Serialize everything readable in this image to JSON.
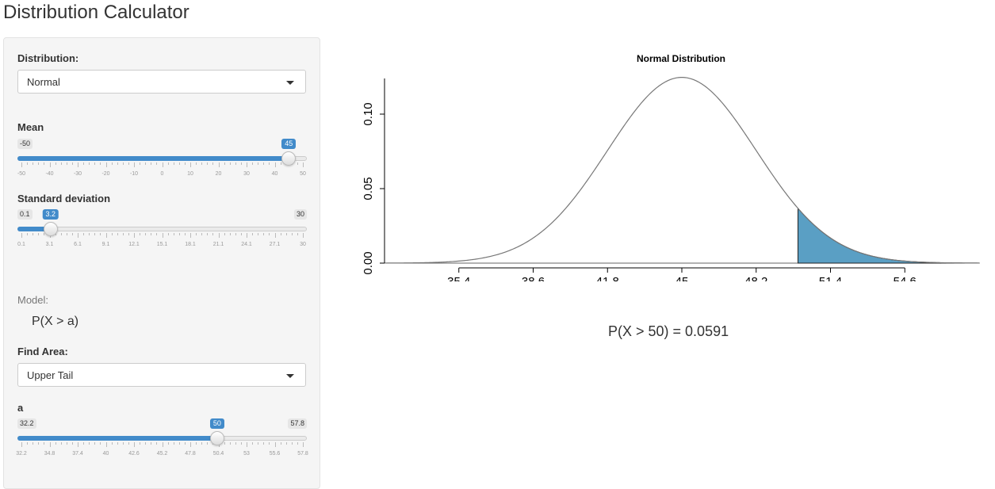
{
  "app": {
    "title": "Distribution Calculator"
  },
  "sidebar": {
    "distribution": {
      "label": "Distribution:",
      "value": "Normal"
    },
    "mean": {
      "label": "Mean",
      "min": -50,
      "max": 50,
      "value": 45,
      "min_label": "-50",
      "max_label": "50",
      "value_label": "45",
      "ticks": [
        "-50",
        "-40",
        "-30",
        "-20",
        "-10",
        "0",
        "10",
        "20",
        "30",
        "40",
        "50"
      ]
    },
    "sd": {
      "label": "Standard deviation",
      "min": 0.1,
      "max": 30,
      "value": 3.2,
      "min_label": "0.1",
      "max_label": "30",
      "value_label": "3.2",
      "ticks": [
        "0.1",
        "3.1",
        "6.1",
        "9.1",
        "12.1",
        "15.1",
        "18.1",
        "21.1",
        "24.1",
        "27.1",
        "30"
      ]
    },
    "model": {
      "label": "Model:",
      "formula": "P(X > a)"
    },
    "find_area": {
      "label": "Find Area:",
      "value": "Upper Tail"
    },
    "a": {
      "label": "a",
      "min": 32.2,
      "max": 57.8,
      "value": 50,
      "min_label": "32.2",
      "max_label": "57.8",
      "value_label": "50",
      "ticks": [
        "32.2",
        "34.8",
        "37.4",
        "40",
        "42.6",
        "45.2",
        "47.8",
        "50.4",
        "53",
        "55.6",
        "57.8"
      ]
    }
  },
  "chart_data": {
    "type": "area",
    "title": "Normal Distribution",
    "distribution": "normal",
    "mean": 45,
    "sd": 3.2,
    "shaded_region": {
      "from": 50,
      "to": "upper tail"
    },
    "shade_color": "#5a9fc4",
    "x_ticks": [
      35.4,
      38.6,
      41.8,
      45,
      48.2,
      51.4,
      54.6
    ],
    "x_tick_labels": [
      "35.4",
      "38.6",
      "41.8",
      "45",
      "48.2",
      "51.4",
      "54.6"
    ],
    "y_ticks": [
      0.0,
      0.05,
      0.1
    ],
    "y_tick_labels": [
      "0.00",
      "0.05",
      "0.10"
    ],
    "xlim": [
      32.2,
      57.8
    ],
    "ylim": [
      0,
      0.125
    ]
  },
  "result": {
    "text": "P(X > 50) = 0.0591"
  }
}
